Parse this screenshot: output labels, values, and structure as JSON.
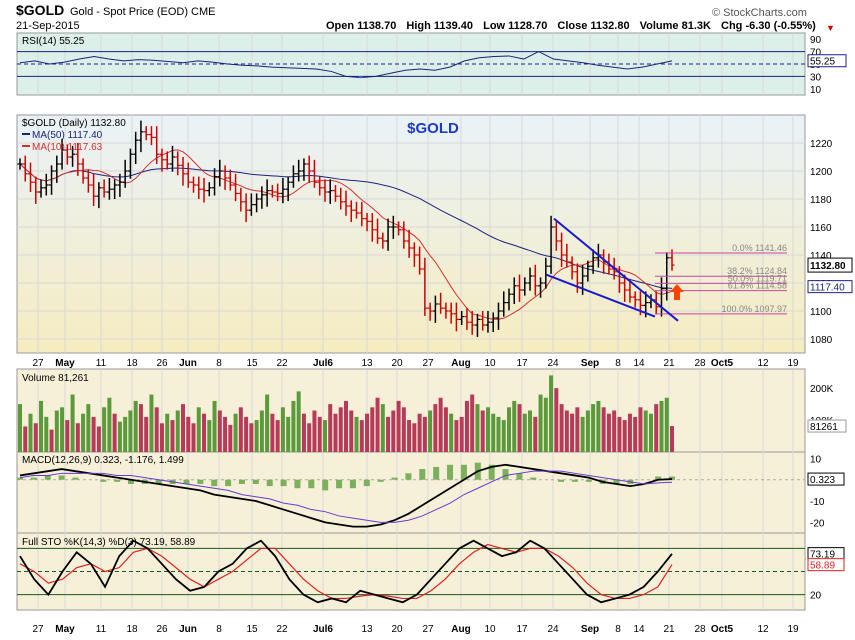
{
  "header": {
    "symbol": "$GOLD",
    "description": "Gold - Spot Price (EOD)  CME",
    "date": "21-Sep-2015",
    "open": "Open 1138.70",
    "high": "High 1139.40",
    "low": "Low 1128.70",
    "close": "Close 1132.80",
    "volume": "Volume 81.3K",
    "change": "Chg -6.30 (-0.55%)",
    "brand": "© StockCharts.com",
    "change_arrow": "▼"
  },
  "colors": {
    "price_bg_top": "#eaf2f8",
    "price_bg_bottom": "#f5ecc0",
    "panel_bg": "#f6f0d8",
    "rsi_bg": "#dcefe8",
    "ma50": "#1a237e",
    "ma10": "#d32f2f",
    "up_bar": "#000000",
    "down_bar": "#cc0000",
    "vol_up": "#5a9a3a",
    "vol_down": "#b83a5a",
    "trendline": "#1a1acc",
    "fib": "#cc44aa",
    "orange_arrow": "#ff4400"
  },
  "chart_data": [
    {
      "type": "line",
      "name": "rsi",
      "title": "RSI(14) 55.25",
      "yticks": [
        "90",
        "70",
        "50",
        "30",
        "10"
      ],
      "ylim": [
        0,
        100
      ],
      "bands": [
        70,
        30
      ],
      "last_value_label": "55.25",
      "values": [
        52,
        55,
        50,
        53,
        58,
        62,
        58,
        55,
        57,
        56,
        54,
        52,
        55,
        53,
        50,
        48,
        47,
        45,
        44,
        43,
        42,
        38,
        30,
        28,
        30,
        35,
        40,
        42,
        40,
        45,
        55,
        60,
        62,
        63,
        58,
        70,
        58,
        55,
        52,
        48,
        45,
        42,
        45,
        50,
        55
      ]
    },
    {
      "type": "ohlc",
      "name": "price",
      "title": "$GOLD (Daily) 1132.80",
      "center_label": "$GOLD",
      "legend": [
        {
          "name": "MA(50) 1117.40",
          "color": "#1a237e"
        },
        {
          "name": "MA(10) 1117.63",
          "color": "#d32f2f"
        }
      ],
      "yticks": [
        "1220",
        "1200",
        "1180",
        "1160",
        "1140",
        "1120",
        "1100",
        "1080"
      ],
      "ylim": [
        1070,
        1240
      ],
      "xticks": [
        "27",
        "May",
        "11",
        "18",
        "26",
        "Jun",
        "8",
        "15",
        "22",
        "Jul6",
        "13",
        "20",
        "27",
        "Aug",
        "10",
        "17",
        "24",
        "Sep",
        "8",
        "14",
        "21",
        "28",
        "Oct5",
        "12",
        "19"
      ],
      "closes": [
        1205,
        1198,
        1192,
        1185,
        1188,
        1190,
        1200,
        1205,
        1215,
        1210,
        1212,
        1205,
        1195,
        1190,
        1182,
        1188,
        1185,
        1187,
        1190,
        1192,
        1200,
        1212,
        1222,
        1228,
        1226,
        1224,
        1212,
        1208,
        1205,
        1210,
        1204,
        1198,
        1192,
        1190,
        1187,
        1186,
        1188,
        1196,
        1200,
        1195,
        1190,
        1184,
        1178,
        1172,
        1176,
        1180,
        1183,
        1186,
        1185,
        1184,
        1187,
        1192,
        1198,
        1200,
        1205,
        1200,
        1192,
        1188,
        1185,
        1186,
        1182,
        1178,
        1175,
        1172,
        1170,
        1166,
        1164,
        1158,
        1152,
        1150,
        1160,
        1160,
        1158,
        1150,
        1145,
        1140,
        1130,
        1102,
        1100,
        1105,
        1102,
        1100,
        1098,
        1094,
        1096,
        1092,
        1090,
        1094,
        1090,
        1092,
        1095,
        1100,
        1106,
        1112,
        1118,
        1115,
        1120,
        1125,
        1118,
        1120,
        1132,
        1160,
        1150,
        1140,
        1135,
        1128,
        1120,
        1125,
        1132,
        1138,
        1140,
        1135,
        1130,
        1128,
        1120,
        1115,
        1110,
        1108,
        1104,
        1106,
        1108,
        1103,
        1116,
        1138,
        1132.8
      ],
      "current_price_label": "1132.80",
      "ma50_label": "1117.40",
      "fib_levels": [
        {
          "label": "0.0% 1141.46",
          "value": 1141.46
        },
        {
          "label": "38.2% 1124.84",
          "value": 1124.84
        },
        {
          "label": "50.0% 1119.71",
          "value": 1119.71
        },
        {
          "label": "61.8% 1114.58",
          "value": 1114.58
        },
        {
          "label": "100.0% 1097.97",
          "value": 1097.97
        }
      ]
    },
    {
      "type": "bar",
      "name": "volume",
      "title": "Volume 81,261",
      "yticks": [
        "200K",
        "100K"
      ],
      "last_value_label": "81261",
      "values": [
        150,
        80,
        120,
        90,
        160,
        110,
        70,
        130,
        140,
        100,
        180,
        90,
        120,
        150,
        110,
        80,
        140,
        170,
        120,
        95,
        110,
        130,
        160,
        150,
        110,
        180,
        140,
        90,
        120,
        100,
        130,
        150,
        110,
        90,
        140,
        120,
        100,
        160,
        130,
        110,
        85,
        120,
        140,
        110,
        90,
        100,
        130,
        180,
        120,
        100,
        140,
        110,
        160,
        190,
        120,
        90,
        130,
        110,
        100,
        150,
        120,
        140,
        160,
        130,
        110,
        100,
        120,
        140,
        170,
        150,
        110,
        130,
        160,
        140,
        100,
        90,
        120,
        110,
        130,
        150,
        170,
        140,
        120,
        100,
        110,
        160,
        180,
        150,
        130,
        140,
        120,
        110,
        100,
        140,
        160,
        150,
        120,
        130,
        110,
        180,
        170,
        240,
        200,
        150,
        130,
        120,
        140,
        110,
        130,
        150,
        160,
        140,
        120,
        130,
        110,
        100,
        120,
        110,
        140,
        130,
        120,
        150,
        160,
        170,
        81.3
      ],
      "up": [
        true,
        false,
        true,
        false,
        true,
        true,
        false,
        true,
        true,
        false,
        true,
        false,
        true,
        true,
        false,
        false,
        true,
        true,
        false,
        true,
        true,
        true,
        true,
        false,
        false,
        true,
        false,
        false,
        true,
        false,
        true,
        false,
        false,
        false,
        true,
        false,
        true,
        true,
        false,
        false,
        false,
        true,
        false,
        false,
        false,
        true,
        true,
        true,
        false,
        false,
        true,
        true,
        true,
        true,
        false,
        false,
        false,
        false,
        true,
        false,
        false,
        false,
        false,
        false,
        true,
        false,
        false,
        false,
        false,
        true,
        false,
        false,
        false,
        false,
        false,
        false,
        false,
        false,
        true,
        false,
        false,
        false,
        true,
        false,
        false,
        false,
        false,
        true,
        false,
        true,
        true,
        true,
        true,
        true,
        true,
        false,
        true,
        true,
        false,
        true,
        true,
        true,
        false,
        false,
        false,
        false,
        false,
        true,
        true,
        true,
        true,
        false,
        false,
        false,
        false,
        false,
        false,
        false,
        false,
        true,
        true,
        false,
        true,
        true,
        false
      ]
    },
    {
      "type": "line",
      "name": "macd",
      "title": "MACD(12,26,9) 0.323, -1.176, 1.499",
      "yticks": [
        "10",
        "0",
        "-10",
        "-20"
      ],
      "ylim": [
        -25,
        13
      ],
      "last_value_label": "0.323",
      "macd": [
        2,
        3,
        4,
        5,
        4,
        3,
        2,
        1,
        0,
        -1,
        -2,
        -3,
        -4,
        -5,
        -7,
        -8,
        -9,
        -10,
        -12,
        -14,
        -16,
        -18,
        -20,
        -21,
        -22,
        -22,
        -21,
        -19,
        -16,
        -12,
        -8,
        -4,
        0,
        4,
        6,
        7,
        6,
        5,
        4,
        3,
        2,
        1,
        -1,
        -2,
        -3,
        -2,
        0,
        0.3
      ],
      "signal": [
        1,
        2,
        2,
        3,
        3,
        3,
        3,
        2,
        2,
        1,
        0,
        -1,
        -2,
        -3,
        -4,
        -5,
        -7,
        -8,
        -9,
        -11,
        -12,
        -14,
        -15,
        -17,
        -18,
        -19,
        -20,
        -20,
        -19,
        -17,
        -14,
        -11,
        -7,
        -4,
        -1,
        2,
        3,
        4,
        4,
        4,
        3,
        2,
        1,
        0,
        -1,
        -2,
        -1.5,
        -1.2
      ]
    },
    {
      "type": "line",
      "name": "sto",
      "title": "Full STO %K(14,3) %D(3) 73.19, 58.89",
      "yticks": [
        "20"
      ],
      "ylim": [
        0,
        100
      ],
      "bands": [
        80,
        20
      ],
      "k_label": "73.19",
      "d_label": "58.89",
      "k": [
        70,
        40,
        20,
        50,
        75,
        60,
        30,
        70,
        90,
        80,
        60,
        40,
        25,
        30,
        50,
        60,
        80,
        90,
        70,
        40,
        20,
        10,
        15,
        10,
        25,
        20,
        15,
        10,
        20,
        40,
        60,
        80,
        90,
        80,
        70,
        75,
        90,
        80,
        60,
        40,
        20,
        10,
        15,
        20,
        30,
        50,
        73
      ],
      "d": [
        60,
        50,
        35,
        40,
        55,
        60,
        50,
        55,
        75,
        80,
        70,
        55,
        40,
        30,
        40,
        50,
        65,
        80,
        80,
        60,
        40,
        25,
        15,
        15,
        18,
        20,
        18,
        15,
        15,
        25,
        40,
        60,
        75,
        85,
        80,
        75,
        80,
        80,
        70,
        55,
        35,
        20,
        15,
        15,
        20,
        30,
        59
      ]
    }
  ]
}
